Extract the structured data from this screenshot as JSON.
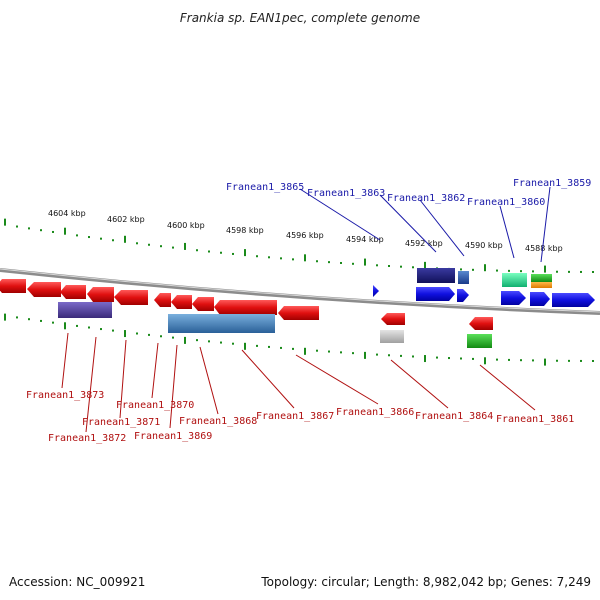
{
  "title": "Frankia sp. EAN1pec, complete genome",
  "footer": {
    "accession": "Accession: NC_009921",
    "topology": "Topology: circular; Length: 8,982,042 bp; Genes: 7,249"
  },
  "scale_labels": [
    "4604 kbp",
    "4602 kbp",
    "4600 kbp",
    "4598 kbp",
    "4596 kbp",
    "4594 kbp",
    "4592 kbp",
    "4590 kbp",
    "4588 kbp"
  ],
  "top_labels": [
    "Franean1_3865",
    "Franean1_3863",
    "Franean1_3862",
    "Franean1_3860",
    "Franean1_3859"
  ],
  "bottom_labels": [
    "Franean1_3873",
    "Franean1_3872",
    "Franean1_3871",
    "Franean1_3870",
    "Franean1_3869",
    "Franean1_3868",
    "Franean1_3867",
    "Franean1_3866",
    "Franean1_3864",
    "Franean1_3861"
  ],
  "colors": {
    "reverse_gene": "#e8151a",
    "forward_gene": "#1515e8",
    "top_label": "#1a1aa8",
    "bottom_label": "#b01010",
    "ruler_tick": "#1a8a1a",
    "backbone": "#8c8c8c"
  }
}
